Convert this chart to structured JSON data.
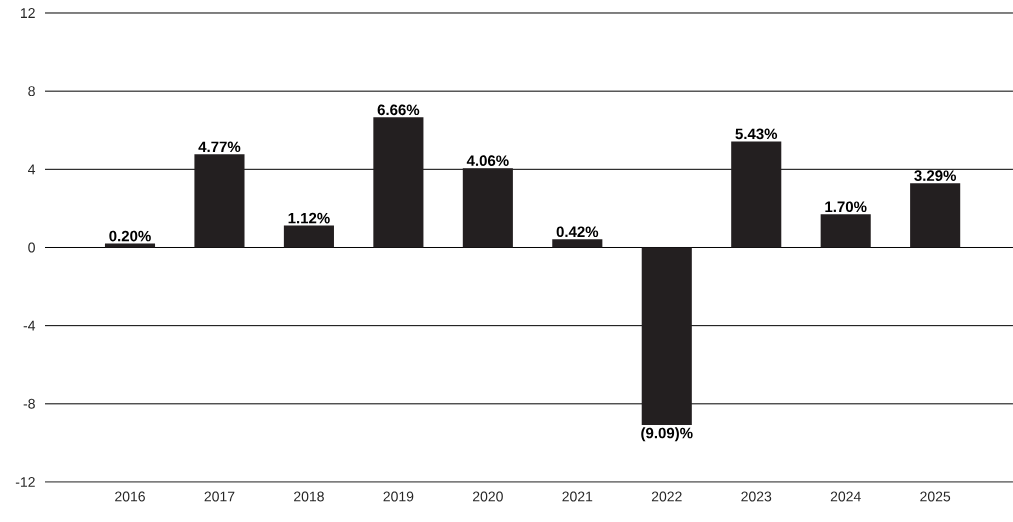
{
  "chart_data": {
    "type": "bar",
    "categories": [
      "2016",
      "2017",
      "2018",
      "2019",
      "2020",
      "2021",
      "2022",
      "2023",
      "2024",
      "2025"
    ],
    "values": [
      0.2,
      4.77,
      1.12,
      6.66,
      4.06,
      0.42,
      -9.09,
      5.43,
      1.7,
      3.29
    ],
    "value_labels": [
      "0.20%",
      "4.77%",
      "1.12%",
      "6.66%",
      "4.06%",
      "0.42%",
      "(9.09)%",
      "5.43%",
      "1.70%",
      "3.29%"
    ],
    "color": "#231f20",
    "ylim": [
      -12,
      12
    ],
    "yticks": [
      -12,
      -8,
      -4,
      0,
      4,
      8,
      12
    ],
    "grid": "y"
  }
}
